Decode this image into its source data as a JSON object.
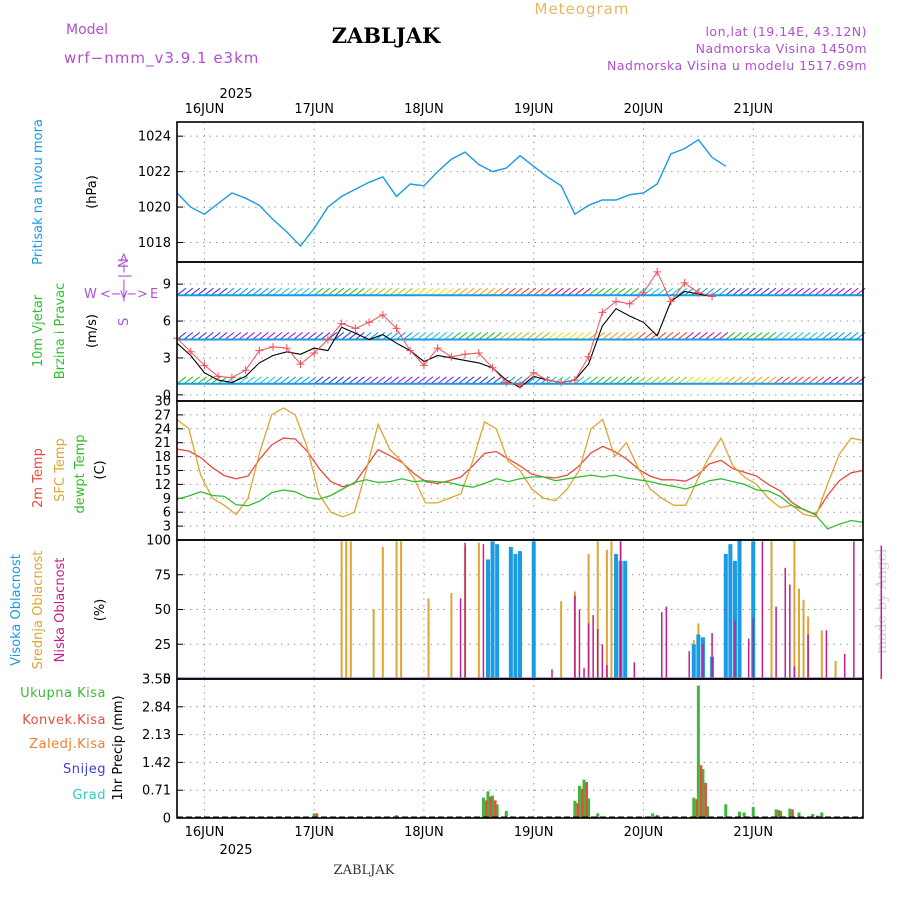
{
  "header": {
    "model_label": "Model",
    "model_name": "wrf−nmm_v3.9.1  e3km",
    "station": "ZABLJAK",
    "meteogram_label": "Meteogram",
    "lonlat": "lon,lat (19.14E, 43.12N)",
    "altitude": "Nadmorska Visina 1450m",
    "model_altitude": "Nadmorska Visina u modelu 1517.69m",
    "footer_station": "ZABLJAK",
    "credit": "made by Angel"
  },
  "colors": {
    "pressure": "#1a9be3",
    "wind_speed": "#000000",
    "wind_gust": "#f0505a",
    "temp_2m": "#e84c3d",
    "temp_sfc": "#dea533",
    "dewpoint": "#2fbe2f",
    "cloud_high": "#1a9be3",
    "cloud_mid": "#dea533",
    "cloud_low": "#c0208a",
    "precip_total": "#3cb83c",
    "precip_conv": "#e84c3d",
    "precip_frozen": "#f08030",
    "snow": "#4040d0",
    "hail": "#30c8c8",
    "title_purple": "#b050d0",
    "meteogram_orange": "#e8b860",
    "grid": "#999999"
  },
  "time_axis": {
    "year": "2025",
    "days": [
      "16JUN",
      "17JUN",
      "18JUN",
      "19JUN",
      "20JUN",
      "21JUN"
    ],
    "hours_before_first_day": 6,
    "total_hours": 150
  },
  "chart_data": [
    {
      "type": "line",
      "id": "pressure",
      "title": "Pritisak na nivou mora",
      "ylabel": "(hPa)",
      "ylim": [
        1016.9,
        1024.8
      ],
      "yticks": [
        1018,
        1020,
        1022,
        1024
      ],
      "x_hours_step": 3,
      "series": [
        {
          "name": "Pritisak na nivou mora",
          "values": [
            1020.8,
            1020.0,
            1019.6,
            1020.2,
            1020.8,
            1020.5,
            1020.1,
            1019.3,
            1018.6,
            1017.8,
            1018.8,
            1020.0,
            1020.6,
            1021.0,
            1021.4,
            1021.7,
            1020.6,
            1021.3,
            1021.2,
            1022.0,
            1022.7,
            1023.1,
            1022.4,
            1022.0,
            1022.2,
            1022.9,
            1022.3,
            1021.7,
            1021.2,
            1019.6,
            1020.1,
            1020.4,
            1020.4,
            1020.7,
            1020.8,
            1021.3,
            1023.0,
            1023.3,
            1023.8,
            1022.8,
            1022.3
          ]
        }
      ]
    },
    {
      "type": "line",
      "id": "wind",
      "title": "10m Vjetar",
      "title2": "Brzina i Pravac",
      "ylabel": "(m/s)",
      "compass": {
        "n": "N",
        "s": "S",
        "w": "W",
        "e": "E",
        "arrows": "<−|−>"
      },
      "ylim": [
        -0.5,
        10.8
      ],
      "yticks": [
        0,
        3,
        6,
        9
      ],
      "x_hours_step": 3,
      "series": [
        {
          "name": "Brzina",
          "values": [
            4.2,
            3.2,
            1.8,
            1.2,
            1.0,
            1.5,
            2.6,
            3.2,
            3.5,
            3.3,
            3.8,
            3.6,
            5.5,
            5.0,
            4.5,
            4.9,
            4.2,
            3.6,
            2.7,
            3.2,
            3.0,
            2.8,
            2.6,
            2.2,
            1.2,
            0.6,
            1.5,
            1.2,
            1.0,
            1.2,
            2.5,
            5.6,
            7.0,
            6.4,
            5.9,
            4.8,
            7.6,
            8.4,
            8.2,
            8.0
          ]
        },
        {
          "name": "Udari",
          "values": [
            4.6,
            3.5,
            2.4,
            1.5,
            1.4,
            2.0,
            3.6,
            3.9,
            3.8,
            2.5,
            3.4,
            4.5,
            5.8,
            5.4,
            5.9,
            6.5,
            5.4,
            3.6,
            2.4,
            3.8,
            3.1,
            3.3,
            3.4,
            2.2,
            1.0,
            0.8,
            1.8,
            1.2,
            1.0,
            1.2,
            3.1,
            6.7,
            7.6,
            7.4,
            8.3,
            10.0,
            7.6,
            9.1,
            8.3,
            8.0
          ]
        }
      ],
      "barb_rows": [
        0.9,
        4.5,
        8.1
      ]
    },
    {
      "type": "line",
      "id": "temperature",
      "title": "2m Temp",
      "title2": "SFC Temp",
      "title3": "dewpt Temp",
      "ylabel": "(C)",
      "ylim": [
        0,
        30
      ],
      "yticks": [
        0,
        3,
        6,
        9,
        12,
        15,
        18,
        21,
        24,
        27,
        30
      ],
      "x_hours_step": 3,
      "series": [
        {
          "name": "2m Temp",
          "values": [
            19.6,
            19.2,
            17.8,
            15.6,
            13.9,
            13.2,
            13.8,
            17.5,
            20.5,
            22.0,
            21.8,
            19.2,
            15.5,
            12.6,
            11.5,
            12.2,
            15.8,
            19.5,
            18.2,
            16.8,
            14.4,
            12.6,
            12.2,
            12.8,
            13.6,
            16.0,
            18.7,
            19.1,
            17.5,
            16.0,
            14.2,
            13.6,
            13.4,
            14.0,
            16.0,
            18.8,
            20.2,
            19.1,
            17.5,
            15.3,
            13.8,
            13.0,
            13.0,
            12.7,
            14.0,
            16.4,
            17.2,
            15.4,
            14.6,
            13.8,
            12.0,
            10.6,
            8.1,
            6.5,
            5.6,
            9.6,
            12.8,
            14.5,
            15.0
          ]
        },
        {
          "name": "SFC Temp",
          "values": [
            26.0,
            24.0,
            14.0,
            9.0,
            7.5,
            5.5,
            9.0,
            19.0,
            27.0,
            28.5,
            27.0,
            20.0,
            10.0,
            6.0,
            5.0,
            6.0,
            15.0,
            25.0,
            19.5,
            17.0,
            13.5,
            8.0,
            8.0,
            9.0,
            10.0,
            17.0,
            25.5,
            24.0,
            17.0,
            15.0,
            11.0,
            9.0,
            8.5,
            11.0,
            15.0,
            24.0,
            26.0,
            18.0,
            21.0,
            15.5,
            11.0,
            9.0,
            7.5,
            7.5,
            13.0,
            18.0,
            22.0,
            16.0,
            13.5,
            12.0,
            9.0,
            7.0,
            7.5,
            5.5,
            5.0,
            12.0,
            18.5,
            22.0,
            21.5
          ]
        },
        {
          "name": "dewpt Temp",
          "values": [
            8.8,
            9.5,
            10.4,
            9.6,
            9.4,
            7.6,
            7.4,
            8.4,
            10.2,
            10.8,
            10.4,
            9.2,
            8.8,
            9.6,
            11.0,
            12.4,
            13.0,
            12.4,
            12.6,
            13.2,
            12.6,
            12.8,
            12.6,
            12.4,
            11.8,
            11.4,
            12.2,
            13.2,
            12.6,
            13.2,
            13.6,
            13.6,
            12.8,
            13.2,
            13.6,
            14.0,
            13.6,
            14.0,
            13.4,
            13.0,
            12.6,
            12.0,
            11.6,
            11.0,
            11.8,
            12.8,
            13.2,
            12.6,
            12.0,
            10.8,
            10.6,
            9.4,
            7.4,
            6.6,
            5.4,
            2.4,
            3.4,
            4.2,
            3.8
          ]
        }
      ]
    },
    {
      "type": "bar",
      "id": "clouds",
      "title": "Visoka Oblacnost",
      "title2": "Srednja Oblacnost",
      "title3": "Niska Oblacnost",
      "ylabel": "(%)",
      "ylim": [
        0,
        100
      ],
      "yticks": [
        0,
        25,
        50,
        75,
        100
      ],
      "series": [
        {
          "name": "Niska",
          "hours": [
            62,
            63,
            67,
            82,
            87,
            88,
            89,
            90,
            91,
            92,
            93,
            94,
            97,
            100,
            106,
            107,
            112,
            115,
            117,
            122,
            125,
            126,
            128,
            131,
            133,
            134,
            135,
            138,
            142,
            146,
            148,
            150,
            154
          ],
          "values": [
            58,
            98,
            97,
            7,
            60,
            50,
            8,
            40,
            46,
            36,
            25,
            10,
            99,
            12,
            48,
            52,
            20,
            25,
            33,
            42,
            29,
            44,
            99,
            52,
            80,
            68,
            9,
            32,
            35,
            18,
            99,
            86,
            96
          ]
        },
        {
          "name": "Srednja",
          "hours": [
            36,
            37,
            38,
            43,
            45,
            48,
            49,
            55,
            60,
            63,
            66,
            84,
            87,
            90,
            92,
            94,
            95,
            97,
            113,
            114,
            130,
            135,
            136,
            137,
            138,
            141,
            144
          ],
          "values": [
            99,
            99,
            99,
            50,
            95,
            99,
            99,
            58,
            62,
            95,
            98,
            56,
            63,
            90,
            99,
            93,
            99,
            99,
            28,
            40,
            99,
            100,
            65,
            57,
            45,
            35,
            13
          ]
        },
        {
          "name": "Visoka",
          "hours": [
            68,
            69,
            70,
            73,
            74,
            75,
            78,
            96,
            97,
            98,
            113,
            114,
            115,
            117,
            120,
            121,
            122,
            123,
            126
          ],
          "values": [
            86,
            99,
            97,
            95,
            90,
            92,
            99,
            90,
            85,
            85,
            25,
            32,
            30,
            16,
            90,
            97,
            85,
            100,
            99
          ]
        }
      ]
    },
    {
      "type": "bar",
      "id": "precip",
      "title": "Ukupna Kisa",
      "title2": "Konvek.Kisa",
      "title3": "Zaledj.Kisa",
      "title4": "Snijeg",
      "title5": "Grad",
      "ylabel": "1hr Precip (mm)",
      "ylim": [
        0,
        3.55
      ],
      "yticks": [
        0,
        0.71,
        1.42,
        2.13,
        2.84,
        3.55
      ],
      "ytick_labels": [
        "0",
        "0.71",
        "1.42",
        "2.13",
        "2.84",
        "3.55"
      ],
      "series": [
        {
          "name": "Ukupna Kisa",
          "hours": [
            30,
            48,
            67,
            68,
            69,
            70,
            72,
            87,
            88,
            89,
            90,
            92,
            104,
            105,
            113,
            114,
            115,
            116,
            120,
            123,
            124,
            126,
            131,
            132,
            134,
            136,
            139,
            140,
            141
          ],
          "values": [
            0.12,
            0.07,
            0.52,
            0.68,
            0.57,
            0.35,
            0.18,
            0.44,
            0.82,
            0.98,
            0.5,
            0.12,
            0.12,
            0.08,
            0.52,
            3.38,
            1.25,
            0.3,
            0.35,
            0.16,
            0.14,
            0.28,
            0.22,
            0.18,
            0.24,
            0.14,
            0.1,
            0.06,
            0.14
          ]
        },
        {
          "name": "Konvek.Kisa",
          "hours": [
            30,
            67,
            68,
            69,
            87,
            88,
            89,
            113,
            114,
            115,
            131,
            134
          ],
          "values": [
            0.12,
            0.45,
            0.55,
            0.45,
            0.38,
            0.75,
            0.92,
            0.48,
            1.35,
            0.9,
            0.2,
            0.22
          ]
        }
      ]
    }
  ]
}
